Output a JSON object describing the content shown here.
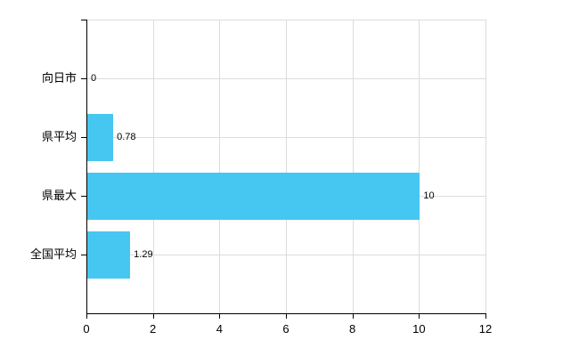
{
  "chart_data": {
    "type": "bar",
    "orientation": "horizontal",
    "title": "",
    "xlabel": "",
    "ylabel": "",
    "categories": [
      "向日市",
      "県平均",
      "県最大",
      "全国平均"
    ],
    "values": [
      0,
      0.78,
      10,
      1.29
    ],
    "value_labels": [
      "0",
      "0.78",
      "10",
      "1.29"
    ],
    "xlim": [
      0,
      12
    ],
    "x_tick_labels": [
      "0",
      "2",
      "4",
      "6",
      "8",
      "10",
      "12"
    ],
    "x_tick_values": [
      0,
      2,
      4,
      6,
      8,
      10,
      12
    ],
    "grid": true,
    "legend": false,
    "bar_color": "#45C7F2",
    "grid_color": "#dcdcdc",
    "axis_color": "#000000",
    "text_color": "#000000"
  }
}
